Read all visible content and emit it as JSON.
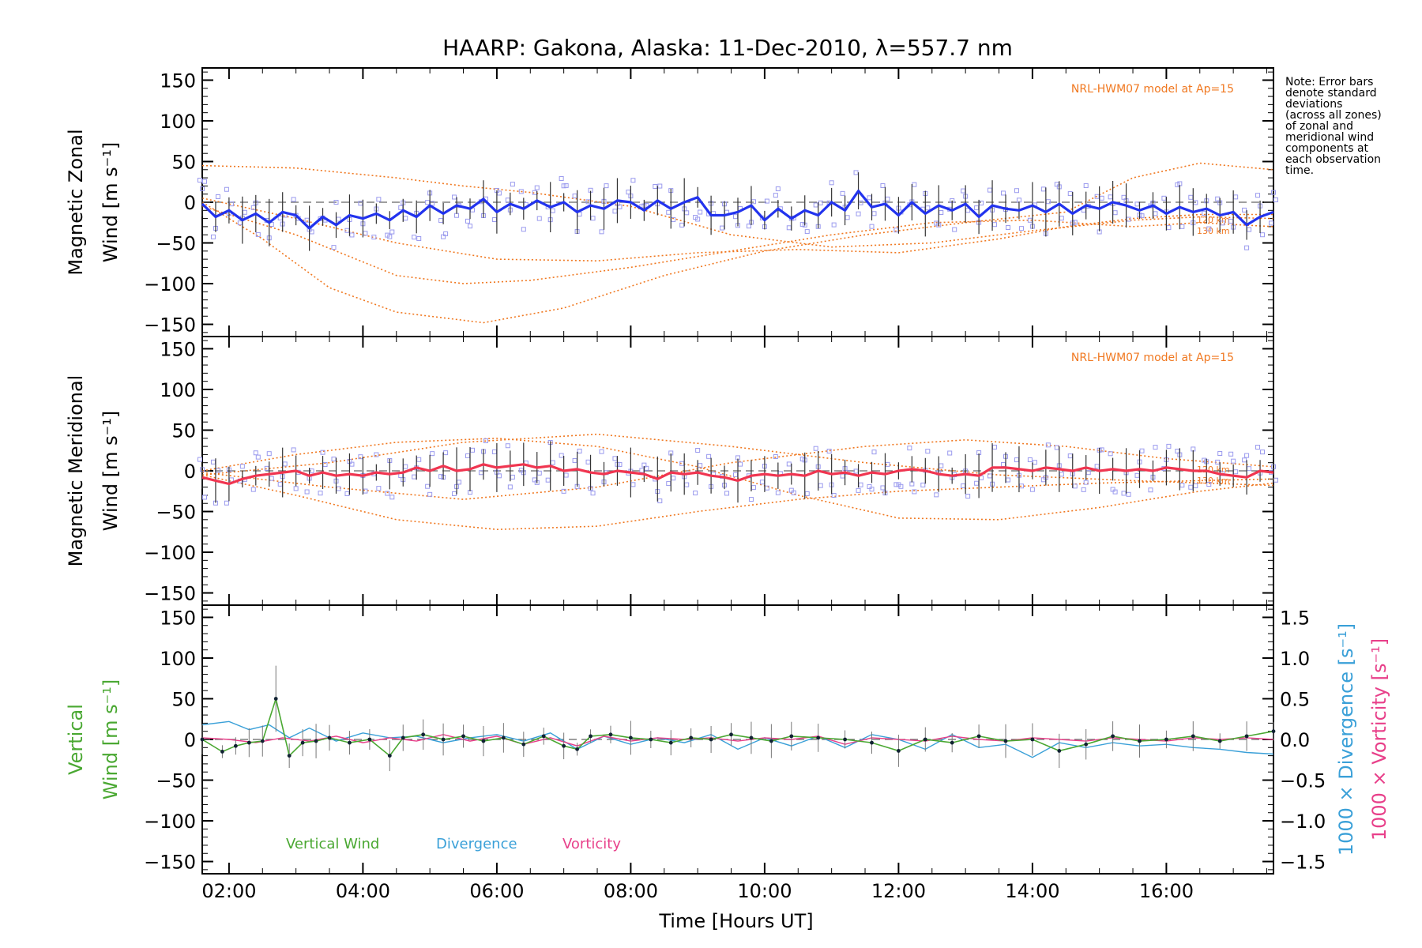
{
  "title": "HAARP: Gakona,  Alaska: 11-Dec-2010, λ=557.7 nm",
  "note": [
    "Note: Error bars",
    "denote standard",
    "deviations",
    "(across all zones)",
    "of zonal and",
    "meridional wind",
    "components at",
    "each observation",
    "time."
  ],
  "colors": {
    "zonal": "#2233ee",
    "meridional": "#f03550",
    "model": "#f07820",
    "vertical": "#4aa832",
    "divergence": "#3aa0d8",
    "vorticity": "#e8408a",
    "zones": "#9a9aee",
    "axis": "#000000"
  },
  "chart_data": [
    {
      "type": "line",
      "title": "",
      "ylabel": [
        "Magnetic Zonal",
        "Wind [m s⁻¹]"
      ],
      "ylim": [
        -165,
        165
      ],
      "yticks": [
        "150",
        "100",
        "50",
        "0",
        "−50",
        "−100",
        "−150"
      ],
      "xlim": [
        1.6,
        17.6
      ],
      "model_label": "NRL-HWM07 model at Ap=15",
      "model_height_labels": [
        "120 km",
        "130 km"
      ],
      "series": [
        {
          "key": "zonal",
          "x": [
            1.6,
            1.8,
            2.0,
            2.2,
            2.4,
            2.6,
            2.8,
            3.0,
            3.2,
            3.4,
            3.6,
            3.8,
            4.0,
            4.2,
            4.4,
            4.6,
            4.8,
            5.0,
            5.2,
            5.4,
            5.6,
            5.8,
            6.0,
            6.2,
            6.4,
            6.6,
            6.8,
            7.0,
            7.2,
            7.4,
            7.6,
            7.8,
            8.0,
            8.2,
            8.4,
            8.6,
            8.8,
            9.0,
            9.2,
            9.4,
            9.6,
            9.8,
            10.0,
            10.2,
            10.4,
            10.6,
            10.8,
            11.0,
            11.2,
            11.4,
            11.6,
            11.8,
            12.0,
            12.2,
            12.4,
            12.6,
            12.8,
            13.0,
            13.2,
            13.4,
            13.6,
            13.8,
            14.0,
            14.2,
            14.4,
            14.6,
            14.8,
            15.0,
            15.2,
            15.4,
            15.6,
            15.8,
            16.0,
            16.2,
            16.4,
            16.6,
            16.8,
            17.0,
            17.2,
            17.4,
            17.6
          ],
          "y": [
            -2,
            -18,
            -10,
            -22,
            -14,
            -25,
            -12,
            -16,
            -32,
            -18,
            -28,
            -16,
            -20,
            -14,
            -22,
            -10,
            -18,
            -4,
            -14,
            -4,
            -8,
            4,
            -12,
            -2,
            -8,
            2,
            -6,
            0,
            -12,
            -4,
            -8,
            2,
            0,
            -10,
            2,
            -8,
            0,
            6,
            -16,
            -16,
            -12,
            -4,
            -22,
            -8,
            -20,
            -10,
            -16,
            0,
            -10,
            14,
            -6,
            -2,
            -16,
            0,
            -14,
            -4,
            -10,
            -2,
            -18,
            -4,
            -8,
            -10,
            -4,
            -12,
            -2,
            -14,
            -4,
            -8,
            0,
            -4,
            -10,
            -4,
            -14,
            -6,
            -12,
            -8,
            -16,
            -12,
            -28,
            -18,
            -12
          ]
        }
      ],
      "models": [
        {
          "x": [
            1.6,
            3.0,
            4.5,
            5.5,
            6.5,
            8.0,
            9.5,
            11.0,
            12.5,
            14.0,
            15.5,
            16.5,
            17.6
          ],
          "y": [
            45,
            42,
            30,
            20,
            12,
            -5,
            -40,
            -55,
            -50,
            -35,
            -22,
            -18,
            -20
          ]
        },
        {
          "x": [
            1.6,
            3.0,
            4.5,
            5.5,
            6.5,
            8.0,
            9.5,
            11.0,
            12.5,
            14.0,
            15.5,
            16.5,
            17.6
          ],
          "y": [
            -5,
            -40,
            -90,
            -100,
            -96,
            -80,
            -60,
            -40,
            -25,
            -22,
            -30,
            -25,
            -30
          ]
        },
        {
          "x": [
            1.6,
            2.5,
            3.5,
            4.5,
            5.8,
            7.0,
            8.5,
            10.0,
            11.5,
            13.0,
            14.5,
            15.5,
            16.5,
            17.6
          ],
          "y": [
            0,
            -45,
            -105,
            -135,
            -148,
            -130,
            -90,
            -60,
            -40,
            -25,
            -12,
            30,
            48,
            40
          ]
        },
        {
          "x": [
            1.6,
            3.0,
            4.5,
            6.0,
            7.5,
            9.0,
            10.5,
            12.0,
            13.5,
            14.5,
            15.5,
            16.5,
            17.6
          ],
          "y": [
            5,
            -20,
            -50,
            -70,
            -72,
            -62,
            -58,
            -62,
            -45,
            -30,
            -20,
            -15,
            -15
          ]
        }
      ]
    },
    {
      "type": "line",
      "title": "",
      "ylabel": [
        "Magnetic Meridional",
        "Wind [m s⁻¹]"
      ],
      "ylim": [
        -165,
        165
      ],
      "yticks": [
        "150",
        "100",
        "50",
        "0",
        "−50",
        "−100",
        "−150"
      ],
      "xlim": [
        1.6,
        17.6
      ],
      "model_label": "NRL-HWM07 model at Ap=15",
      "model_height_labels": [
        "120 km",
        "130 km"
      ],
      "series": [
        {
          "key": "meridional",
          "x": [
            1.6,
            1.8,
            2.0,
            2.2,
            2.4,
            2.6,
            2.8,
            3.0,
            3.2,
            3.4,
            3.6,
            3.8,
            4.0,
            4.2,
            4.4,
            4.6,
            4.8,
            5.0,
            5.2,
            5.4,
            5.6,
            5.8,
            6.0,
            6.2,
            6.4,
            6.6,
            6.8,
            7.0,
            7.2,
            7.4,
            7.6,
            7.8,
            8.0,
            8.2,
            8.4,
            8.6,
            8.8,
            9.0,
            9.2,
            9.4,
            9.6,
            9.8,
            10.0,
            10.2,
            10.4,
            10.6,
            10.8,
            11.0,
            11.2,
            11.4,
            11.6,
            11.8,
            12.0,
            12.2,
            12.4,
            12.6,
            12.8,
            13.0,
            13.2,
            13.4,
            13.6,
            13.8,
            14.0,
            14.2,
            14.4,
            14.6,
            14.8,
            15.0,
            15.2,
            15.4,
            15.6,
            15.8,
            16.0,
            16.2,
            16.4,
            16.6,
            16.8,
            17.0,
            17.2,
            17.4,
            17.6
          ],
          "y": [
            -8,
            -12,
            -16,
            -10,
            -6,
            -4,
            -2,
            0,
            -6,
            -2,
            -6,
            -4,
            -6,
            -2,
            -4,
            -2,
            4,
            0,
            6,
            0,
            2,
            8,
            4,
            6,
            8,
            4,
            6,
            0,
            2,
            -2,
            -4,
            0,
            -2,
            -4,
            -10,
            -2,
            -4,
            -2,
            -6,
            -8,
            -12,
            -6,
            -4,
            -6,
            -4,
            -6,
            0,
            -4,
            -2,
            -6,
            -2,
            -4,
            0,
            2,
            0,
            -4,
            -6,
            -4,
            -6,
            4,
            4,
            2,
            0,
            4,
            2,
            0,
            4,
            0,
            2,
            0,
            2,
            0,
            4,
            2,
            0,
            0,
            -4,
            -6,
            -8,
            0,
            -2
          ]
        }
      ],
      "models": [
        {
          "x": [
            1.6,
            3.0,
            4.5,
            6.0,
            7.5,
            9.0,
            10.5,
            12.0,
            13.5,
            15.0,
            16.5,
            17.6
          ],
          "y": [
            -5,
            -30,
            -60,
            -72,
            -68,
            -50,
            -35,
            -25,
            -20,
            -15,
            -12,
            -10
          ]
        },
        {
          "x": [
            1.6,
            3.0,
            4.5,
            6.0,
            7.5,
            9.0,
            10.5,
            12.0,
            13.5,
            15.0,
            16.5,
            17.6
          ],
          "y": [
            0,
            20,
            35,
            40,
            30,
            5,
            -30,
            -58,
            -60,
            -45,
            -25,
            -15
          ]
        },
        {
          "x": [
            1.6,
            3.5,
            5.5,
            7.5,
            9.5,
            11.5,
            13.0,
            14.5,
            16.0,
            17.6
          ],
          "y": [
            -2,
            -20,
            -35,
            -20,
            10,
            30,
            38,
            30,
            15,
            5
          ]
        },
        {
          "x": [
            1.6,
            3.5,
            5.5,
            7.5,
            9.5,
            11.5,
            13.5,
            15.5,
            17.6
          ],
          "y": [
            -5,
            10,
            35,
            45,
            30,
            10,
            -5,
            -12,
            -18
          ]
        }
      ]
    },
    {
      "type": "line",
      "title": "",
      "ylabel": [
        "Vertical",
        "Wind [m s⁻¹]"
      ],
      "ylabel_right": [
        "1000 × Divergence [s⁻¹]",
        "1000 × Vorticity [s⁻¹]"
      ],
      "ylim": [
        -165,
        165
      ],
      "yticks": [
        "150",
        "100",
        "50",
        "0",
        "−50",
        "−100",
        "−150"
      ],
      "ylim_right": [
        -1.65,
        1.65
      ],
      "yticks_right": [
        "1.5",
        "1.0",
        "0.5",
        "0.0",
        "−0.5",
        "−1.0",
        "−1.5"
      ],
      "xlim": [
        1.6,
        17.6
      ],
      "xticks": [
        "02:00",
        "04:00",
        "06:00",
        "08:00",
        "10:00",
        "12:00",
        "14:00",
        "16:00"
      ],
      "xlabel": "Time [Hours UT]",
      "legend": [
        "Vertical Wind",
        "Divergence",
        "Vorticity"
      ],
      "series": [
        {
          "key": "vertical",
          "name": "Vertical Wind",
          "x": [
            1.6,
            1.9,
            2.1,
            2.3,
            2.5,
            2.7,
            2.9,
            3.1,
            3.3,
            3.5,
            3.8,
            4.1,
            4.4,
            4.6,
            4.9,
            5.2,
            5.5,
            5.8,
            6.1,
            6.4,
            6.7,
            7.0,
            7.2,
            7.4,
            7.7,
            8.0,
            8.3,
            8.6,
            8.9,
            9.2,
            9.5,
            9.8,
            10.1,
            10.4,
            10.8,
            11.2,
            11.6,
            12.0,
            12.4,
            12.8,
            13.2,
            13.6,
            14.0,
            14.4,
            14.8,
            15.2,
            15.6,
            16.0,
            16.4,
            16.8,
            17.2,
            17.6
          ],
          "y": [
            0,
            -15,
            -8,
            -4,
            -2,
            50,
            -20,
            -4,
            -2,
            2,
            -4,
            0,
            -20,
            2,
            6,
            0,
            4,
            -2,
            2,
            -6,
            4,
            -8,
            -12,
            4,
            6,
            2,
            0,
            -4,
            2,
            0,
            6,
            2,
            -2,
            4,
            2,
            0,
            -4,
            -14,
            0,
            -4,
            4,
            -2,
            0,
            -14,
            -6,
            4,
            -2,
            0,
            4,
            -2,
            4,
            10
          ]
        },
        {
          "key": "divergence",
          "name": "Divergence",
          "x": [
            1.6,
            2.0,
            2.3,
            2.6,
            2.9,
            3.2,
            3.6,
            4.0,
            4.4,
            4.8,
            5.2,
            5.6,
            6.0,
            6.4,
            6.8,
            7.2,
            7.6,
            8.0,
            8.4,
            8.8,
            9.2,
            9.6,
            10.0,
            10.4,
            10.8,
            11.2,
            11.6,
            12.0,
            12.4,
            12.8,
            13.2,
            13.6,
            14.0,
            14.4,
            14.8,
            15.2,
            15.6,
            16.0,
            16.4,
            16.8,
            17.2,
            17.6
          ],
          "y": [
            0.18,
            0.22,
            0.12,
            0.18,
            0.02,
            0.14,
            -0.02,
            0.08,
            0.02,
            0.04,
            -0.04,
            0.02,
            0.06,
            -0.02,
            0.08,
            -0.12,
            0.04,
            -0.06,
            0.02,
            -0.04,
            0.06,
            -0.12,
            0.02,
            -0.08,
            0.04,
            -0.1,
            0.06,
            0.0,
            -0.12,
            0.06,
            -0.1,
            -0.06,
            -0.22,
            -0.04,
            -0.1,
            -0.04,
            -0.08,
            -0.06,
            -0.1,
            -0.12,
            -0.16,
            -0.18
          ]
        },
        {
          "key": "vorticity",
          "name": "Vorticity",
          "x": [
            1.6,
            2.0,
            2.4,
            2.8,
            3.2,
            3.6,
            4.0,
            4.4,
            4.8,
            5.2,
            5.6,
            6.0,
            6.4,
            6.8,
            7.2,
            7.6,
            8.0,
            8.4,
            8.8,
            9.2,
            9.6,
            10.0,
            10.4,
            10.8,
            11.2,
            11.6,
            12.0,
            12.4,
            12.8,
            13.2,
            13.6,
            14.0,
            14.4,
            14.8,
            15.2,
            15.6,
            16.0,
            16.4,
            16.8,
            17.2,
            17.6
          ],
          "y": [
            0.02,
            0.0,
            -0.04,
            0.02,
            -0.02,
            0.04,
            -0.04,
            0.02,
            -0.02,
            0.06,
            -0.02,
            0.04,
            -0.06,
            0.02,
            -0.08,
            0.04,
            -0.02,
            0.02,
            0.0,
            0.02,
            -0.02,
            0.02,
            0.0,
            0.04,
            -0.06,
            0.02,
            0.0,
            -0.02,
            0.04,
            0.0,
            -0.02,
            0.02,
            0.0,
            -0.02,
            0.02,
            0.0,
            -0.02,
            0.02,
            0.0,
            0.02,
            0.0
          ]
        }
      ]
    }
  ]
}
